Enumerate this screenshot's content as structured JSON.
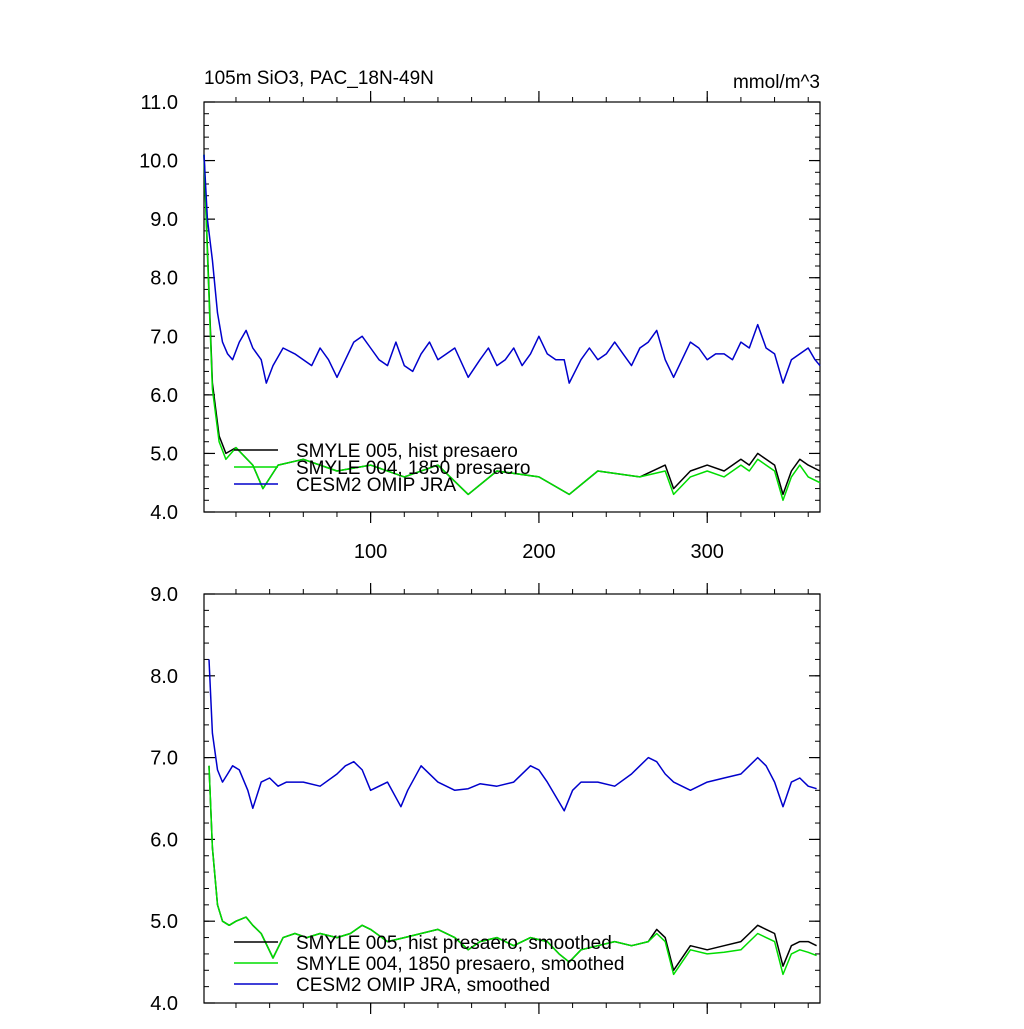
{
  "chart_data": [
    {
      "type": "line",
      "title_left": "105m SiO3, PAC_18N-49N",
      "title_right": "mmol/m^3",
      "xlabel": "",
      "ylabel": "",
      "xlim": [
        1,
        367
      ],
      "ylim": [
        4.0,
        11.0
      ],
      "x_ticks": [
        100,
        200,
        300
      ],
      "y_ticks": [
        "4.0",
        "5.0",
        "6.0",
        "7.0",
        "8.0",
        "9.0",
        "10.0",
        "11.0"
      ],
      "legend": {
        "placement": "lower-left",
        "entries": [
          "SMYLE 005, hist presaero",
          "SMYLE 004, 1850 presaero",
          "CESM2 OMIP JRA"
        ]
      },
      "series": [
        {
          "name": "SMYLE 005, hist presaero",
          "color": "#000000",
          "x": [
            1,
            3,
            6,
            10,
            14,
            20,
            30,
            36,
            45,
            60,
            80,
            100,
            120,
            140,
            158,
            175,
            200,
            218,
            235,
            260,
            275,
            280,
            290,
            300,
            310,
            320,
            325,
            330,
            335,
            340,
            345,
            350,
            355,
            360,
            367
          ],
          "y": [
            10.1,
            8.5,
            6.2,
            5.3,
            5.0,
            5.1,
            4.8,
            4.4,
            4.8,
            4.9,
            4.7,
            4.8,
            4.6,
            4.8,
            4.3,
            4.7,
            4.6,
            4.3,
            4.7,
            4.6,
            4.8,
            4.4,
            4.7,
            4.8,
            4.7,
            4.9,
            4.8,
            5.0,
            4.9,
            4.8,
            4.3,
            4.7,
            4.9,
            4.8,
            4.7
          ]
        },
        {
          "name": "SMYLE 004, 1850 presaero",
          "color": "#00dd00",
          "x": [
            1,
            3,
            6,
            10,
            14,
            20,
            30,
            36,
            45,
            60,
            80,
            100,
            120,
            140,
            158,
            175,
            200,
            218,
            235,
            260,
            275,
            280,
            290,
            300,
            310,
            320,
            325,
            330,
            335,
            340,
            345,
            350,
            355,
            360,
            367
          ],
          "y": [
            10.1,
            8.4,
            6.1,
            5.2,
            4.9,
            5.1,
            4.8,
            4.4,
            4.8,
            4.9,
            4.7,
            4.8,
            4.6,
            4.8,
            4.3,
            4.7,
            4.6,
            4.3,
            4.7,
            4.6,
            4.7,
            4.3,
            4.6,
            4.7,
            4.6,
            4.8,
            4.7,
            4.9,
            4.8,
            4.7,
            4.2,
            4.6,
            4.8,
            4.6,
            4.5
          ]
        },
        {
          "name": "CESM2 OMIP JRA",
          "color": "#0000cc",
          "x": [
            1,
            3,
            6,
            9,
            12,
            15,
            18,
            22,
            26,
            30,
            35,
            38,
            42,
            48,
            55,
            60,
            65,
            70,
            75,
            80,
            85,
            90,
            95,
            100,
            105,
            110,
            115,
            120,
            125,
            130,
            135,
            140,
            145,
            150,
            158,
            165,
            170,
            175,
            180,
            185,
            190,
            195,
            200,
            205,
            210,
            215,
            218,
            225,
            230,
            235,
            240,
            245,
            250,
            255,
            260,
            265,
            270,
            275,
            280,
            285,
            290,
            295,
            300,
            305,
            310,
            315,
            320,
            325,
            330,
            335,
            340,
            345,
            350,
            355,
            360,
            364,
            367
          ],
          "y": [
            10.1,
            9.0,
            8.3,
            7.4,
            6.9,
            6.7,
            6.6,
            6.9,
            7.1,
            6.8,
            6.6,
            6.2,
            6.5,
            6.8,
            6.7,
            6.6,
            6.5,
            6.8,
            6.6,
            6.3,
            6.6,
            6.9,
            7.0,
            6.8,
            6.6,
            6.5,
            6.9,
            6.5,
            6.4,
            6.7,
            6.9,
            6.6,
            6.7,
            6.8,
            6.3,
            6.6,
            6.8,
            6.5,
            6.6,
            6.8,
            6.5,
            6.7,
            7.0,
            6.7,
            6.6,
            6.6,
            6.2,
            6.6,
            6.8,
            6.6,
            6.7,
            6.9,
            6.7,
            6.5,
            6.8,
            6.9,
            7.1,
            6.6,
            6.3,
            6.6,
            6.9,
            6.8,
            6.6,
            6.7,
            6.7,
            6.6,
            6.9,
            6.8,
            7.2,
            6.8,
            6.7,
            6.2,
            6.6,
            6.7,
            6.8,
            6.6,
            6.5
          ]
        }
      ]
    },
    {
      "type": "line",
      "xlabel": "",
      "ylabel": "",
      "xlim": [
        1,
        367
      ],
      "ylim": [
        4.0,
        9.0
      ],
      "x_ticks": [
        100,
        200,
        300
      ],
      "y_ticks": [
        "4.0",
        "5.0",
        "6.0",
        "7.0",
        "8.0",
        "9.0"
      ],
      "legend": {
        "placement": "lower-left",
        "entries": [
          "SMYLE 005, hist presaero, smoothed",
          "SMYLE 004, 1850 presaero, smoothed",
          "CESM2 OMIP JRA, smoothed"
        ]
      },
      "series": [
        {
          "name": "SMYLE 005, hist presaero, smoothed",
          "color": "#000000",
          "x": [
            4,
            6,
            9,
            12,
            16,
            20,
            26,
            30,
            35,
            42,
            48,
            55,
            62,
            70,
            80,
            88,
            95,
            100,
            110,
            120,
            130,
            140,
            150,
            158,
            165,
            175,
            185,
            195,
            205,
            212,
            218,
            225,
            235,
            245,
            255,
            265,
            270,
            275,
            280,
            290,
            300,
            310,
            320,
            325,
            330,
            335,
            340,
            345,
            350,
            355,
            360,
            365
          ],
          "y": [
            6.9,
            5.9,
            5.2,
            5.0,
            4.95,
            5.0,
            5.05,
            4.95,
            4.85,
            4.55,
            4.8,
            4.85,
            4.8,
            4.85,
            4.8,
            4.85,
            4.95,
            4.9,
            4.75,
            4.8,
            4.85,
            4.9,
            4.8,
            4.65,
            4.75,
            4.8,
            4.7,
            4.8,
            4.75,
            4.6,
            4.5,
            4.65,
            4.7,
            4.75,
            4.7,
            4.75,
            4.9,
            4.8,
            4.4,
            4.7,
            4.65,
            4.7,
            4.75,
            4.85,
            4.95,
            4.9,
            4.85,
            4.45,
            4.7,
            4.75,
            4.75,
            4.7
          ]
        },
        {
          "name": "SMYLE 004, 1850 presaero, smoothed",
          "color": "#00dd00",
          "x": [
            4,
            6,
            9,
            12,
            16,
            20,
            26,
            30,
            35,
            42,
            48,
            55,
            62,
            70,
            80,
            88,
            95,
            100,
            110,
            120,
            130,
            140,
            150,
            158,
            165,
            175,
            185,
            195,
            205,
            212,
            218,
            225,
            235,
            245,
            255,
            265,
            270,
            275,
            280,
            290,
            300,
            310,
            320,
            325,
            330,
            335,
            340,
            345,
            350,
            355,
            360,
            365
          ],
          "y": [
            6.9,
            5.9,
            5.2,
            5.0,
            4.95,
            5.0,
            5.05,
            4.95,
            4.85,
            4.55,
            4.8,
            4.85,
            4.8,
            4.85,
            4.8,
            4.85,
            4.95,
            4.9,
            4.75,
            4.8,
            4.85,
            4.9,
            4.8,
            4.65,
            4.75,
            4.8,
            4.7,
            4.8,
            4.75,
            4.6,
            4.5,
            4.65,
            4.7,
            4.75,
            4.7,
            4.75,
            4.85,
            4.75,
            4.35,
            4.65,
            4.6,
            4.62,
            4.65,
            4.75,
            4.85,
            4.8,
            4.75,
            4.35,
            4.6,
            4.65,
            4.62,
            4.58
          ]
        },
        {
          "name": "CESM2 OMIP JRA, smoothed",
          "color": "#0000cc",
          "x": [
            4,
            6,
            9,
            12,
            15,
            18,
            22,
            27,
            30,
            35,
            40,
            45,
            50,
            60,
            70,
            80,
            85,
            90,
            95,
            100,
            110,
            118,
            122,
            130,
            140,
            150,
            158,
            165,
            175,
            185,
            195,
            200,
            205,
            215,
            220,
            225,
            235,
            245,
            255,
            265,
            270,
            275,
            280,
            290,
            300,
            310,
            320,
            325,
            330,
            335,
            340,
            345,
            350,
            355,
            360,
            365
          ],
          "y": [
            8.2,
            7.3,
            6.85,
            6.7,
            6.8,
            6.9,
            6.85,
            6.6,
            6.38,
            6.7,
            6.75,
            6.65,
            6.7,
            6.7,
            6.65,
            6.8,
            6.9,
            6.95,
            6.85,
            6.6,
            6.7,
            6.4,
            6.6,
            6.9,
            6.7,
            6.6,
            6.62,
            6.68,
            6.65,
            6.7,
            6.9,
            6.85,
            6.7,
            6.35,
            6.6,
            6.7,
            6.7,
            6.65,
            6.8,
            7.0,
            6.95,
            6.8,
            6.7,
            6.6,
            6.7,
            6.75,
            6.8,
            6.9,
            7.0,
            6.9,
            6.7,
            6.4,
            6.7,
            6.75,
            6.65,
            6.62
          ]
        }
      ]
    }
  ]
}
